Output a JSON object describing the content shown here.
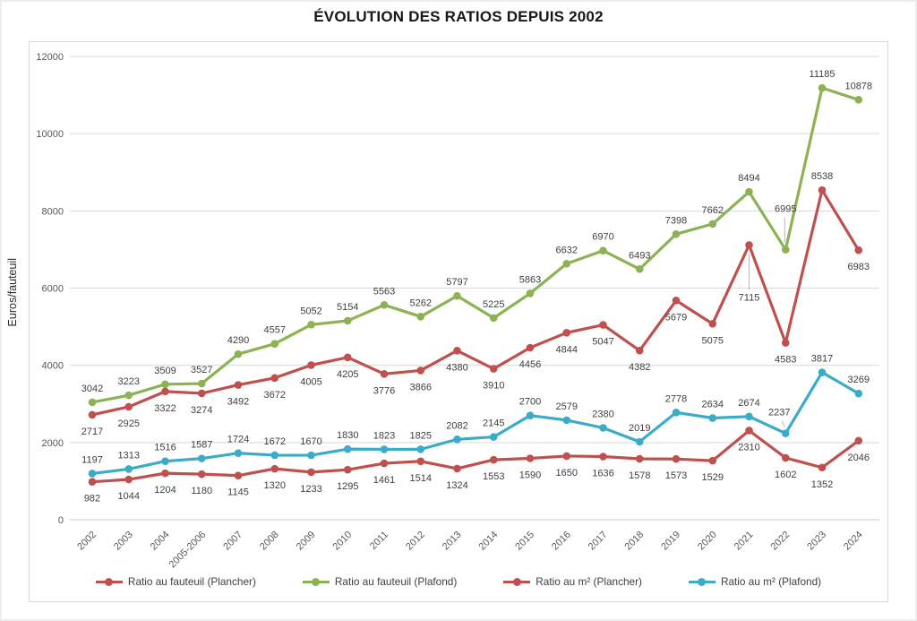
{
  "chart_data": {
    "type": "line",
    "title": "ÉVOLUTION DES RATIOS DEPUIS 2002",
    "xlabel": "",
    "ylabel": "Euros/fauteuil",
    "ylim": [
      0,
      12000
    ],
    "yticks": [
      0,
      2000,
      4000,
      6000,
      8000,
      10000,
      12000
    ],
    "grid": true,
    "legend_position": "bottom",
    "categories": [
      "2002",
      "2003",
      "2004",
      "2005-2006",
      "2007",
      "2008",
      "2009",
      "2010",
      "2011",
      "2012",
      "2013",
      "2014",
      "2015",
      "2016",
      "2017",
      "2018",
      "2019",
      "2020",
      "2021",
      "2022",
      "2023",
      "2024"
    ],
    "series": [
      {
        "name": "Ratio au fauteuil (Plancher)",
        "color": "#C0504D",
        "values": [
          2717,
          2925,
          3322,
          3274,
          3492,
          3672,
          4005,
          4205,
          3776,
          3866,
          4380,
          3910,
          4456,
          4844,
          5047,
          4382,
          5679,
          5075,
          7115,
          4583,
          8538,
          6983
        ]
      },
      {
        "name": "Ratio au fauteuil (Plafond)",
        "color": "#8CB254",
        "values": [
          3042,
          3223,
          3509,
          3527,
          4290,
          4557,
          5052,
          5154,
          5563,
          5262,
          5797,
          5225,
          5863,
          6632,
          6970,
          6493,
          7398,
          7662,
          8494,
          6995,
          11185,
          10878
        ]
      },
      {
        "name": "Ratio au m² (Plancher)",
        "color": "#C0504D",
        "values": [
          982,
          1044,
          1204,
          1180,
          1145,
          1320,
          1233,
          1295,
          1461,
          1514,
          1324,
          1553,
          1590,
          1650,
          1636,
          1578,
          1573,
          1529,
          2310,
          1602,
          1352,
          2046
        ]
      },
      {
        "name": "Ratio au m² (Plafond)",
        "color": "#3BACC8",
        "values": [
          1197,
          1313,
          1516,
          1587,
          1724,
          1672,
          1670,
          1830,
          1823,
          1825,
          2082,
          2145,
          2700,
          2579,
          2380,
          2019,
          2778,
          2634,
          2674,
          2237,
          3817,
          3269
        ]
      }
    ]
  }
}
